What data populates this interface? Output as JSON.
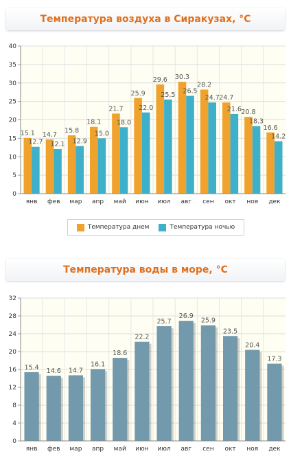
{
  "chart_data": [
    {
      "type": "bar",
      "title": "Температура воздуха в Сиракузах, °C",
      "categories": [
        "янв",
        "фев",
        "мар",
        "апр",
        "май",
        "июн",
        "июл",
        "авг",
        "сен",
        "окт",
        "ноя",
        "дек"
      ],
      "series": [
        {
          "name": "Температура днем",
          "color": "#f0a22e",
          "values": [
            15.1,
            14.7,
            15.8,
            18.1,
            21.7,
            25.9,
            29.6,
            30.3,
            28.2,
            24.7,
            20.8,
            16.6
          ]
        },
        {
          "name": "Температура ночью",
          "color": "#3fb0c9",
          "values": [
            12.7,
            12.1,
            12.9,
            15.0,
            18.0,
            22.0,
            25.5,
            26.5,
            24.7,
            21.6,
            18.3,
            14.2
          ]
        }
      ],
      "ylim": [
        0,
        40
      ],
      "yticks": [
        0,
        5,
        10,
        15,
        20,
        25,
        30,
        35,
        40
      ],
      "grid": true,
      "legend": "bottom"
    },
    {
      "type": "bar",
      "title": "Температура воды в море, °C",
      "categories": [
        "янв",
        "фев",
        "мар",
        "апр",
        "май",
        "июн",
        "июл",
        "авг",
        "сен",
        "окт",
        "ноя",
        "дек"
      ],
      "series": [
        {
          "color": "#7399ac",
          "values": [
            15.4,
            14.6,
            14.7,
            16.1,
            18.6,
            22.2,
            25.7,
            26.9,
            25.9,
            23.5,
            20.4,
            17.3
          ]
        }
      ],
      "ylim": [
        0,
        32
      ],
      "yticks": [
        0,
        4,
        8,
        12,
        16,
        20,
        24,
        28,
        32
      ],
      "grid": true
    }
  ]
}
